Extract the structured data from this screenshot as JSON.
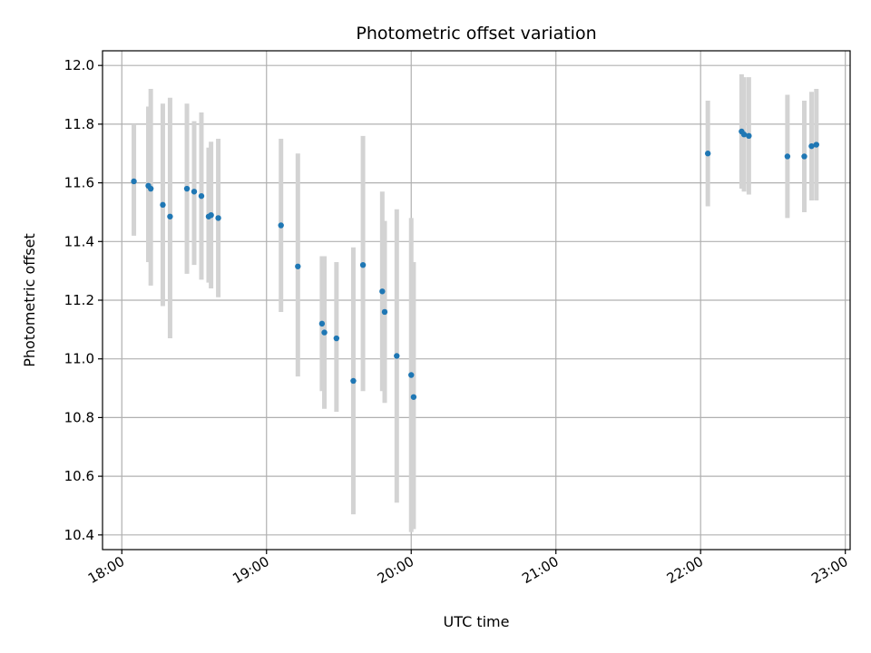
{
  "chart_data": {
    "type": "scatter",
    "title": "Photometric offset variation",
    "xlabel": "UTC time",
    "ylabel": "Photometric offset",
    "x_unit": "UTC time (HH:MM)",
    "xlim": [
      "17:52",
      "23:02"
    ],
    "ylim": [
      10.35,
      12.05
    ],
    "x_ticks": [
      "18:00",
      "19:00",
      "20:00",
      "21:00",
      "22:00",
      "23:00"
    ],
    "y_ticks": [
      "10.4",
      "10.6",
      "10.8",
      "11.0",
      "11.2",
      "11.4",
      "11.6",
      "11.8",
      "12.0"
    ],
    "grid": true,
    "colors": {
      "point": "#1f77b4",
      "errorbar": "#d3d3d3",
      "grid": "#b0b0b0"
    },
    "points": [
      {
        "x": "18:05",
        "y": 11.605,
        "ylo": 11.42,
        "yhi": 11.8
      },
      {
        "x": "18:11",
        "y": 11.59,
        "ylo": 11.33,
        "yhi": 11.86
      },
      {
        "x": "18:12",
        "y": 11.58,
        "ylo": 11.25,
        "yhi": 11.92
      },
      {
        "x": "18:17",
        "y": 11.525,
        "ylo": 11.18,
        "yhi": 11.87
      },
      {
        "x": "18:20",
        "y": 11.485,
        "ylo": 11.07,
        "yhi": 11.89
      },
      {
        "x": "18:27",
        "y": 11.58,
        "ylo": 11.29,
        "yhi": 11.87
      },
      {
        "x": "18:30",
        "y": 11.57,
        "ylo": 11.32,
        "yhi": 11.81
      },
      {
        "x": "18:33",
        "y": 11.555,
        "ylo": 11.27,
        "yhi": 11.84
      },
      {
        "x": "18:36",
        "y": 11.485,
        "ylo": 11.26,
        "yhi": 11.72
      },
      {
        "x": "18:37",
        "y": 11.49,
        "ylo": 11.24,
        "yhi": 11.74
      },
      {
        "x": "18:40",
        "y": 11.48,
        "ylo": 11.21,
        "yhi": 11.75
      },
      {
        "x": "19:06",
        "y": 11.455,
        "ylo": 11.16,
        "yhi": 11.75
      },
      {
        "x": "19:13",
        "y": 11.315,
        "ylo": 10.94,
        "yhi": 11.7
      },
      {
        "x": "19:23",
        "y": 11.12,
        "ylo": 10.89,
        "yhi": 11.35
      },
      {
        "x": "19:24",
        "y": 11.09,
        "ylo": 10.83,
        "yhi": 11.35
      },
      {
        "x": "19:29",
        "y": 11.07,
        "ylo": 10.82,
        "yhi": 11.33
      },
      {
        "x": "19:36",
        "y": 10.925,
        "ylo": 10.47,
        "yhi": 11.38
      },
      {
        "x": "19:40",
        "y": 11.32,
        "ylo": 10.89,
        "yhi": 11.76
      },
      {
        "x": "19:48",
        "y": 11.23,
        "ylo": 10.89,
        "yhi": 11.57
      },
      {
        "x": "19:49",
        "y": 11.16,
        "ylo": 10.85,
        "yhi": 11.47
      },
      {
        "x": "19:54",
        "y": 11.01,
        "ylo": 10.51,
        "yhi": 11.51
      },
      {
        "x": "20:00",
        "y": 10.945,
        "ylo": 10.41,
        "yhi": 11.48
      },
      {
        "x": "20:01",
        "y": 10.87,
        "ylo": 10.42,
        "yhi": 11.33
      },
      {
        "x": "22:03",
        "y": 11.7,
        "ylo": 11.52,
        "yhi": 11.88
      },
      {
        "x": "22:17",
        "y": 11.775,
        "ylo": 11.58,
        "yhi": 11.97
      },
      {
        "x": "22:18",
        "y": 11.765,
        "ylo": 11.57,
        "yhi": 11.96
      },
      {
        "x": "22:20",
        "y": 11.76,
        "ylo": 11.56,
        "yhi": 11.96
      },
      {
        "x": "22:36",
        "y": 11.69,
        "ylo": 11.48,
        "yhi": 11.9
      },
      {
        "x": "22:43",
        "y": 11.69,
        "ylo": 11.5,
        "yhi": 11.88
      },
      {
        "x": "22:46",
        "y": 11.725,
        "ylo": 11.54,
        "yhi": 11.91
      },
      {
        "x": "22:48",
        "y": 11.73,
        "ylo": 11.54,
        "yhi": 11.92
      }
    ]
  }
}
